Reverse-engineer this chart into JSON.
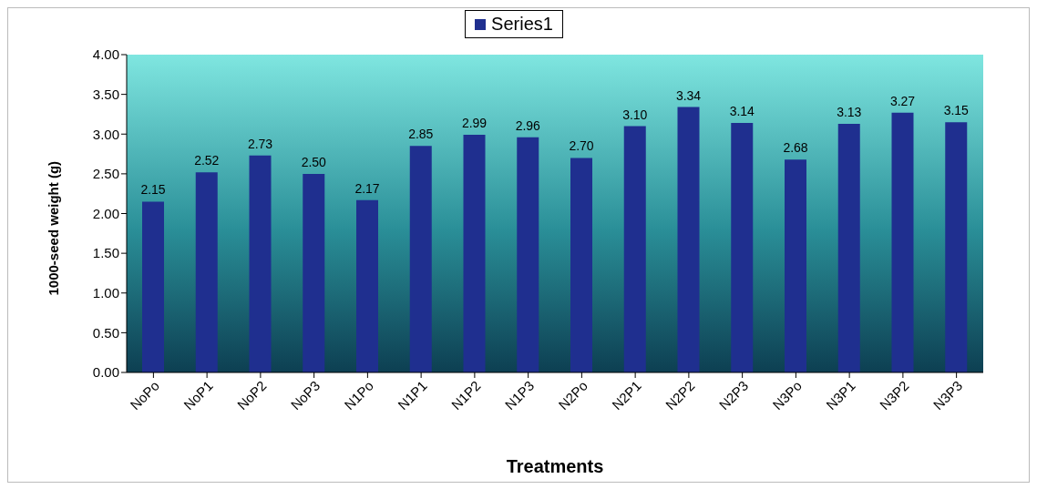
{
  "chart_data": {
    "type": "bar",
    "xlabel": "Treatments",
    "ylabel": "1000-seed weight (g)",
    "categories": [
      "NoPo",
      "NoP1",
      "NoP2",
      "NoP3",
      "N1Po",
      "N1P1",
      "N1P2",
      "N1P3",
      "N2Po",
      "N2P1",
      "N2P2",
      "N2P3",
      "N3Po",
      "N3P1",
      "N3P2",
      "N3P3"
    ],
    "series": [
      {
        "name": "Series1",
        "color": "#1f2f8f",
        "values": [
          2.15,
          2.52,
          2.73,
          2.5,
          2.17,
          2.85,
          2.99,
          2.96,
          2.7,
          3.1,
          3.34,
          3.14,
          2.68,
          3.13,
          3.27,
          3.15
        ],
        "value_labels": [
          "2.15",
          "2.52",
          "2.73",
          "2.50",
          "2.17",
          "2.85",
          "2.99",
          "2.96",
          "2.70",
          "3.10",
          "3.34",
          "3.14",
          "2.68",
          "3.13",
          "3.27",
          "3.15"
        ]
      }
    ],
    "ylim": [
      0,
      4
    ],
    "yticks": [
      {
        "value": 0,
        "label": "0.00"
      },
      {
        "value": 0.5,
        "label": "0.50"
      },
      {
        "value": 1,
        "label": "1.00"
      },
      {
        "value": 1.5,
        "label": "1.50"
      },
      {
        "value": 2,
        "label": "2.00"
      },
      {
        "value": 2.5,
        "label": "2.50"
      },
      {
        "value": 3,
        "label": "3.00"
      },
      {
        "value": 3.5,
        "label": "3.50"
      },
      {
        "value": 4,
        "label": "4.00"
      }
    ],
    "legend": "top",
    "grid": false
  }
}
